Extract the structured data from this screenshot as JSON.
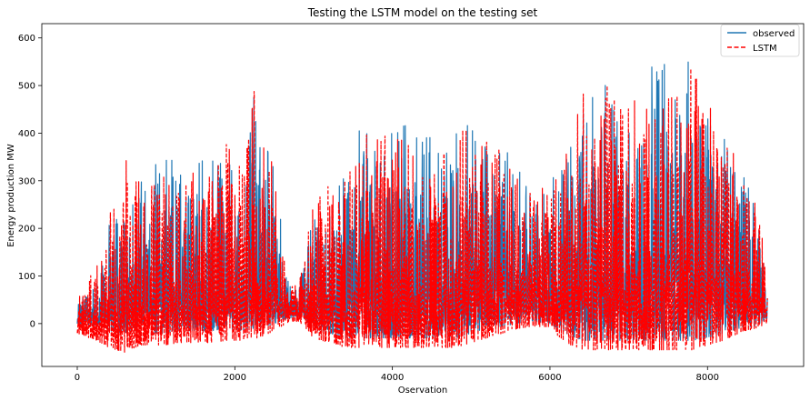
{
  "chart_data": {
    "type": "line",
    "title": "Testing the LSTM model on the testing set",
    "xlabel": "Oservation",
    "ylabel": "Energy production MW",
    "xlim": [
      -450,
      9220
    ],
    "ylim": [
      -90,
      630
    ],
    "x_ticks": [
      0,
      2000,
      4000,
      6000,
      8000
    ],
    "y_ticks": [
      0,
      100,
      200,
      300,
      400,
      500,
      600
    ],
    "grid": false,
    "legend_position": "top-right",
    "n_points": 8760,
    "series": [
      {
        "name": "observed",
        "color": "#1f77b4",
        "style": "solid",
        "envelope": {
          "x": [
            0,
            300,
            400,
            600,
            800,
            1000,
            1100,
            1300,
            1500,
            1700,
            1900,
            2100,
            2200,
            2250,
            2300,
            2500,
            2650,
            2800,
            3000,
            3200,
            3400,
            3600,
            3800,
            4000,
            4200,
            4400,
            4600,
            4800,
            5000,
            5200,
            5400,
            5600,
            5800,
            6000,
            6200,
            6400,
            6600,
            6800,
            7000,
            7200,
            7400,
            7600,
            7800,
            8000,
            8200,
            8400,
            8600,
            8760
          ],
          "max": [
            60,
            110,
            240,
            300,
            330,
            340,
            375,
            320,
            340,
            350,
            375,
            330,
            410,
            540,
            410,
            350,
            110,
            70,
            240,
            300,
            330,
            420,
            410,
            430,
            420,
            430,
            420,
            400,
            450,
            440,
            400,
            340,
            280,
            290,
            370,
            480,
            510,
            510,
            500,
            500,
            590,
            560,
            550,
            480,
            430,
            330,
            260,
            100
          ],
          "min": [
            0,
            -5,
            -15,
            -20,
            -15,
            -20,
            -20,
            -15,
            -15,
            -15,
            -10,
            -15,
            -10,
            -10,
            -10,
            0,
            10,
            15,
            -10,
            -20,
            -30,
            -30,
            -30,
            -30,
            -30,
            -30,
            -30,
            -30,
            -20,
            -10,
            -5,
            0,
            5,
            0,
            -20,
            -35,
            -35,
            -35,
            -35,
            -35,
            -35,
            -35,
            -35,
            -30,
            -20,
            -10,
            -5,
            10
          ]
        }
      },
      {
        "name": "LSTM",
        "color": "#ff0000",
        "style": "dashed",
        "envelope": {
          "x": [
            0,
            300,
            400,
            600,
            800,
            1000,
            1100,
            1300,
            1500,
            1700,
            1900,
            2100,
            2200,
            2250,
            2300,
            2500,
            2650,
            2800,
            3000,
            3200,
            3400,
            3600,
            3800,
            4000,
            4200,
            4400,
            4600,
            4800,
            5000,
            5200,
            5400,
            5600,
            5800,
            6000,
            6200,
            6400,
            6600,
            6800,
            7000,
            7200,
            7400,
            7600,
            7800,
            8000,
            8200,
            8400,
            8600,
            8760
          ],
          "max": [
            50,
            140,
            240,
            350,
            300,
            300,
            320,
            290,
            330,
            340,
            380,
            320,
            415,
            545,
            415,
            340,
            120,
            80,
            270,
            290,
            310,
            430,
            390,
            400,
            380,
            390,
            380,
            370,
            450,
            430,
            380,
            310,
            270,
            300,
            380,
            530,
            535,
            520,
            500,
            480,
            500,
            520,
            540,
            490,
            440,
            340,
            280,
            120
          ],
          "min": [
            -20,
            -40,
            -50,
            -60,
            -45,
            -45,
            -45,
            -40,
            -40,
            -40,
            -35,
            -35,
            -30,
            -30,
            -30,
            -15,
            0,
            5,
            -30,
            -40,
            -50,
            -50,
            -50,
            -50,
            -50,
            -50,
            -50,
            -50,
            -40,
            -30,
            -20,
            -10,
            -5,
            -10,
            -40,
            -55,
            -55,
            -55,
            -55,
            -55,
            -55,
            -55,
            -55,
            -45,
            -35,
            -20,
            -10,
            0
          ]
        }
      }
    ]
  }
}
